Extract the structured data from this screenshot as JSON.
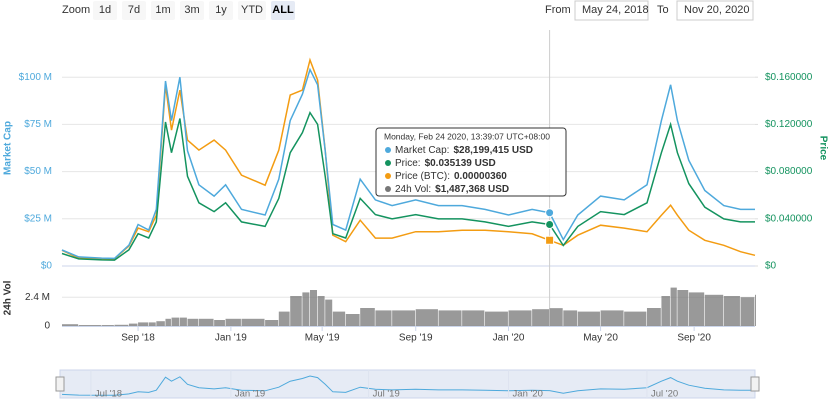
{
  "chart_data": {
    "type": "line",
    "zoom": {
      "label": "Zoom",
      "buttons": [
        "1d",
        "7d",
        "1m",
        "3m",
        "1y",
        "YTD",
        "ALL"
      ],
      "selected": 6
    },
    "range": {
      "from_label": "From",
      "from": "May 24, 2018",
      "to_label": "To",
      "to": "Nov 20, 2020"
    },
    "ylabel": "Market Cap",
    "y2label": "Price",
    "volume_ylabel": "24h Vol",
    "x": [
      "2018-05-24",
      "2018-06-15",
      "2018-07-15",
      "2018-08-01",
      "2018-08-20",
      "2018-09-01",
      "2018-09-15",
      "2018-09-25",
      "2018-10-07",
      "2018-10-15",
      "2018-10-26",
      "2018-11-05",
      "2018-11-20",
      "2018-12-10",
      "2018-12-25",
      "2019-01-15",
      "2019-02-15",
      "2019-03-05",
      "2019-03-20",
      "2019-04-05",
      "2019-04-15",
      "2019-04-25",
      "2019-05-05",
      "2019-05-15",
      "2019-06-01",
      "2019-06-20",
      "2019-07-10",
      "2019-08-01",
      "2019-09-01",
      "2019-10-01",
      "2019-11-01",
      "2019-12-01",
      "2020-01-01",
      "2020-02-01",
      "2020-02-24",
      "2020-03-13",
      "2020-04-01",
      "2020-05-01",
      "2020-06-01",
      "2020-07-01",
      "2020-07-20",
      "2020-08-01",
      "2020-08-10",
      "2020-08-25",
      "2020-09-15",
      "2020-10-10",
      "2020-11-01",
      "2020-11-20"
    ],
    "xlim": [
      "2018-05-24",
      "2020-11-20"
    ],
    "xticks": [
      {
        "value": "2018-09-01",
        "label": "Sep '18"
      },
      {
        "value": "2019-01-01",
        "label": "Jan '19"
      },
      {
        "value": "2019-05-01",
        "label": "May '19"
      },
      {
        "value": "2019-09-01",
        "label": "Sep '19"
      },
      {
        "value": "2020-01-01",
        "label": "Jan '20"
      },
      {
        "value": "2020-05-01",
        "label": "May '20"
      },
      {
        "value": "2020-09-01",
        "label": "Sep '20"
      }
    ],
    "navigator_xticks": [
      {
        "value": "2018-07-01",
        "label": "Jul '18"
      },
      {
        "value": "2019-01-01",
        "label": "Jan '19"
      },
      {
        "value": "2019-07-01",
        "label": "Jul '19"
      },
      {
        "value": "2020-01-01",
        "label": "Jan '20"
      },
      {
        "value": "2020-07-01",
        "label": "Jul '20"
      }
    ],
    "ylim": [
      0,
      125000000
    ],
    "yticks": [
      {
        "value": 0,
        "label": "$0"
      },
      {
        "value": 25000000,
        "label": "$25 M"
      },
      {
        "value": 50000000,
        "label": "$50 M"
      },
      {
        "value": 75000000,
        "label": "$75 M"
      },
      {
        "value": 100000000,
        "label": "$100 M"
      }
    ],
    "y2lim": [
      0,
      0.2
    ],
    "y2ticks": [
      {
        "value": 0,
        "label": "$0"
      },
      {
        "value": 0.04,
        "label": "$0.040000"
      },
      {
        "value": 0.08,
        "label": "$0.080000"
      },
      {
        "value": 0.12,
        "label": "$0.120000"
      },
      {
        "value": 0.16,
        "label": "$0.160000"
      }
    ],
    "y3lim": [
      0,
      3.3e-05
    ],
    "volume_ylim": [
      0,
      4500000
    ],
    "volume_yticks": [
      0,
      {
        "value": 2400000,
        "label": "2.4 M"
      }
    ],
    "grid": true,
    "tooltip": {
      "title": "Monday, Feb 24 2020, 13:39:07 UTC+08:00",
      "labels": [
        "Market Cap:",
        "Price:",
        "Price (BTC):",
        "24h Vol:"
      ]
    },
    "series": [
      {
        "name": "Market Cap",
        "color": "#4ea9dc",
        "axis": "y",
        "values": [
          8500000,
          4800000,
          4200000,
          4000000,
          11000000,
          22000000,
          19000000,
          30000000,
          98000000,
          77000000,
          100000000,
          61000000,
          43000000,
          37000000,
          43000000,
          30000000,
          27000000,
          46000000,
          77000000,
          91000000,
          104000000,
          96000000,
          61000000,
          22000000,
          19000000,
          46000000,
          35000000,
          32000000,
          35000000,
          32000000,
          32000000,
          30000000,
          27000000,
          30000000,
          28199415,
          14000000,
          27000000,
          37000000,
          35000000,
          43000000,
          77000000,
          96000000,
          77000000,
          56000000,
          40000000,
          32000000,
          30000000,
          30000000
        ],
        "value_labels": [
          null,
          null,
          null,
          null,
          null,
          null,
          null,
          null,
          null,
          null,
          null,
          null,
          null,
          null,
          null,
          null,
          null,
          null,
          null,
          null,
          null,
          null,
          null,
          null,
          null,
          null,
          null,
          null,
          null,
          null,
          null,
          null,
          null,
          null,
          "$28,199,415 USD",
          null,
          null,
          null,
          null,
          null,
          null,
          null,
          null,
          null,
          null,
          null,
          null,
          null
        ]
      },
      {
        "name": "Price",
        "color": "#14935f",
        "axis": "y2",
        "values": [
          0.0106,
          0.006,
          0.0052,
          0.005,
          0.0137,
          0.0274,
          0.0237,
          0.0374,
          0.122,
          0.096,
          0.125,
          0.076,
          0.0536,
          0.0461,
          0.0536,
          0.0374,
          0.0336,
          0.0573,
          0.096,
          0.113,
          0.13,
          0.12,
          0.076,
          0.0274,
          0.0237,
          0.0573,
          0.0436,
          0.0399,
          0.0436,
          0.0399,
          0.0399,
          0.0374,
          0.0336,
          0.0374,
          0.035139,
          0.0174,
          0.0336,
          0.0461,
          0.0436,
          0.0536,
          0.096,
          0.12,
          0.096,
          0.0698,
          0.0498,
          0.0399,
          0.0374,
          0.0374
        ],
        "value_labels": [
          null,
          null,
          null,
          null,
          null,
          null,
          null,
          null,
          null,
          null,
          null,
          null,
          null,
          null,
          null,
          null,
          null,
          null,
          null,
          null,
          null,
          null,
          null,
          null,
          null,
          null,
          null,
          null,
          null,
          null,
          null,
          null,
          null,
          null,
          "$0.035139 USD",
          null,
          null,
          null,
          null,
          null,
          null,
          null,
          null,
          null,
          null,
          null,
          null,
          null
        ]
      },
      {
        "name": "Price (BTC)",
        "color": "#f39c12",
        "axis": "y3",
        "values": [
          2.2e-06,
          1.1e-06,
          1e-06,
          1e-06,
          2.8e-06,
          5.3e-06,
          4.8e-06,
          7.1e-06,
          2.53e-05,
          1.9e-05,
          2.46e-05,
          1.76e-05,
          1.62e-05,
          1.76e-05,
          1.62e-05,
          1.27e-05,
          1.13e-05,
          1.62e-05,
          2.39e-05,
          2.46e-05,
          2.88e-05,
          2.6e-05,
          1.62e-05,
          4.3e-06,
          3.4e-06,
          6.4e-06,
          3.9e-06,
          3.9e-06,
          4.8e-06,
          4.8e-06,
          5e-06,
          5e-06,
          4.8e-06,
          4.5e-06,
          3.6e-06,
          2.9e-06,
          4.3e-06,
          5.7e-06,
          5.3e-06,
          4.8e-06,
          7.1e-06,
          8.5e-06,
          7.1e-06,
          5e-06,
          3.6e-06,
          2.9e-06,
          2e-06,
          1.5e-06
        ],
        "value_labels": [
          null,
          null,
          null,
          null,
          null,
          null,
          null,
          null,
          null,
          null,
          null,
          null,
          null,
          null,
          null,
          null,
          null,
          null,
          null,
          null,
          null,
          null,
          null,
          null,
          null,
          null,
          null,
          null,
          null,
          null,
          null,
          null,
          null,
          null,
          "0.00000360",
          null,
          null,
          null,
          null,
          null,
          null,
          null,
          null,
          null,
          null,
          null,
          null,
          null
        ]
      },
      {
        "name": "24h Vol",
        "color": "#777777",
        "axis": "volume",
        "values": [
          150000,
          80000,
          80000,
          100000,
          200000,
          300000,
          300000,
          400000,
          600000,
          700000,
          700000,
          600000,
          600000,
          500000,
          600000,
          600000,
          500000,
          1200000,
          2500000,
          2800000,
          3000000,
          2500000,
          2200000,
          1200000,
          1000000,
          1500000,
          1300000,
          1300000,
          1400000,
          1300000,
          1300000,
          1200000,
          1300000,
          1400000,
          1487368,
          1300000,
          1200000,
          1300000,
          1200000,
          1500000,
          2500000,
          3200000,
          3000000,
          2800000,
          2600000,
          2500000,
          2400000,
          2600000
        ],
        "value_labels": [
          null,
          null,
          null,
          null,
          null,
          null,
          null,
          null,
          null,
          null,
          null,
          null,
          null,
          null,
          null,
          null,
          null,
          null,
          null,
          null,
          null,
          null,
          null,
          null,
          null,
          null,
          null,
          null,
          null,
          null,
          null,
          null,
          null,
          null,
          "$1,487,368 USD",
          null,
          null,
          null,
          null,
          null,
          null,
          null,
          null,
          null,
          null,
          null,
          null,
          null
        ]
      }
    ]
  }
}
